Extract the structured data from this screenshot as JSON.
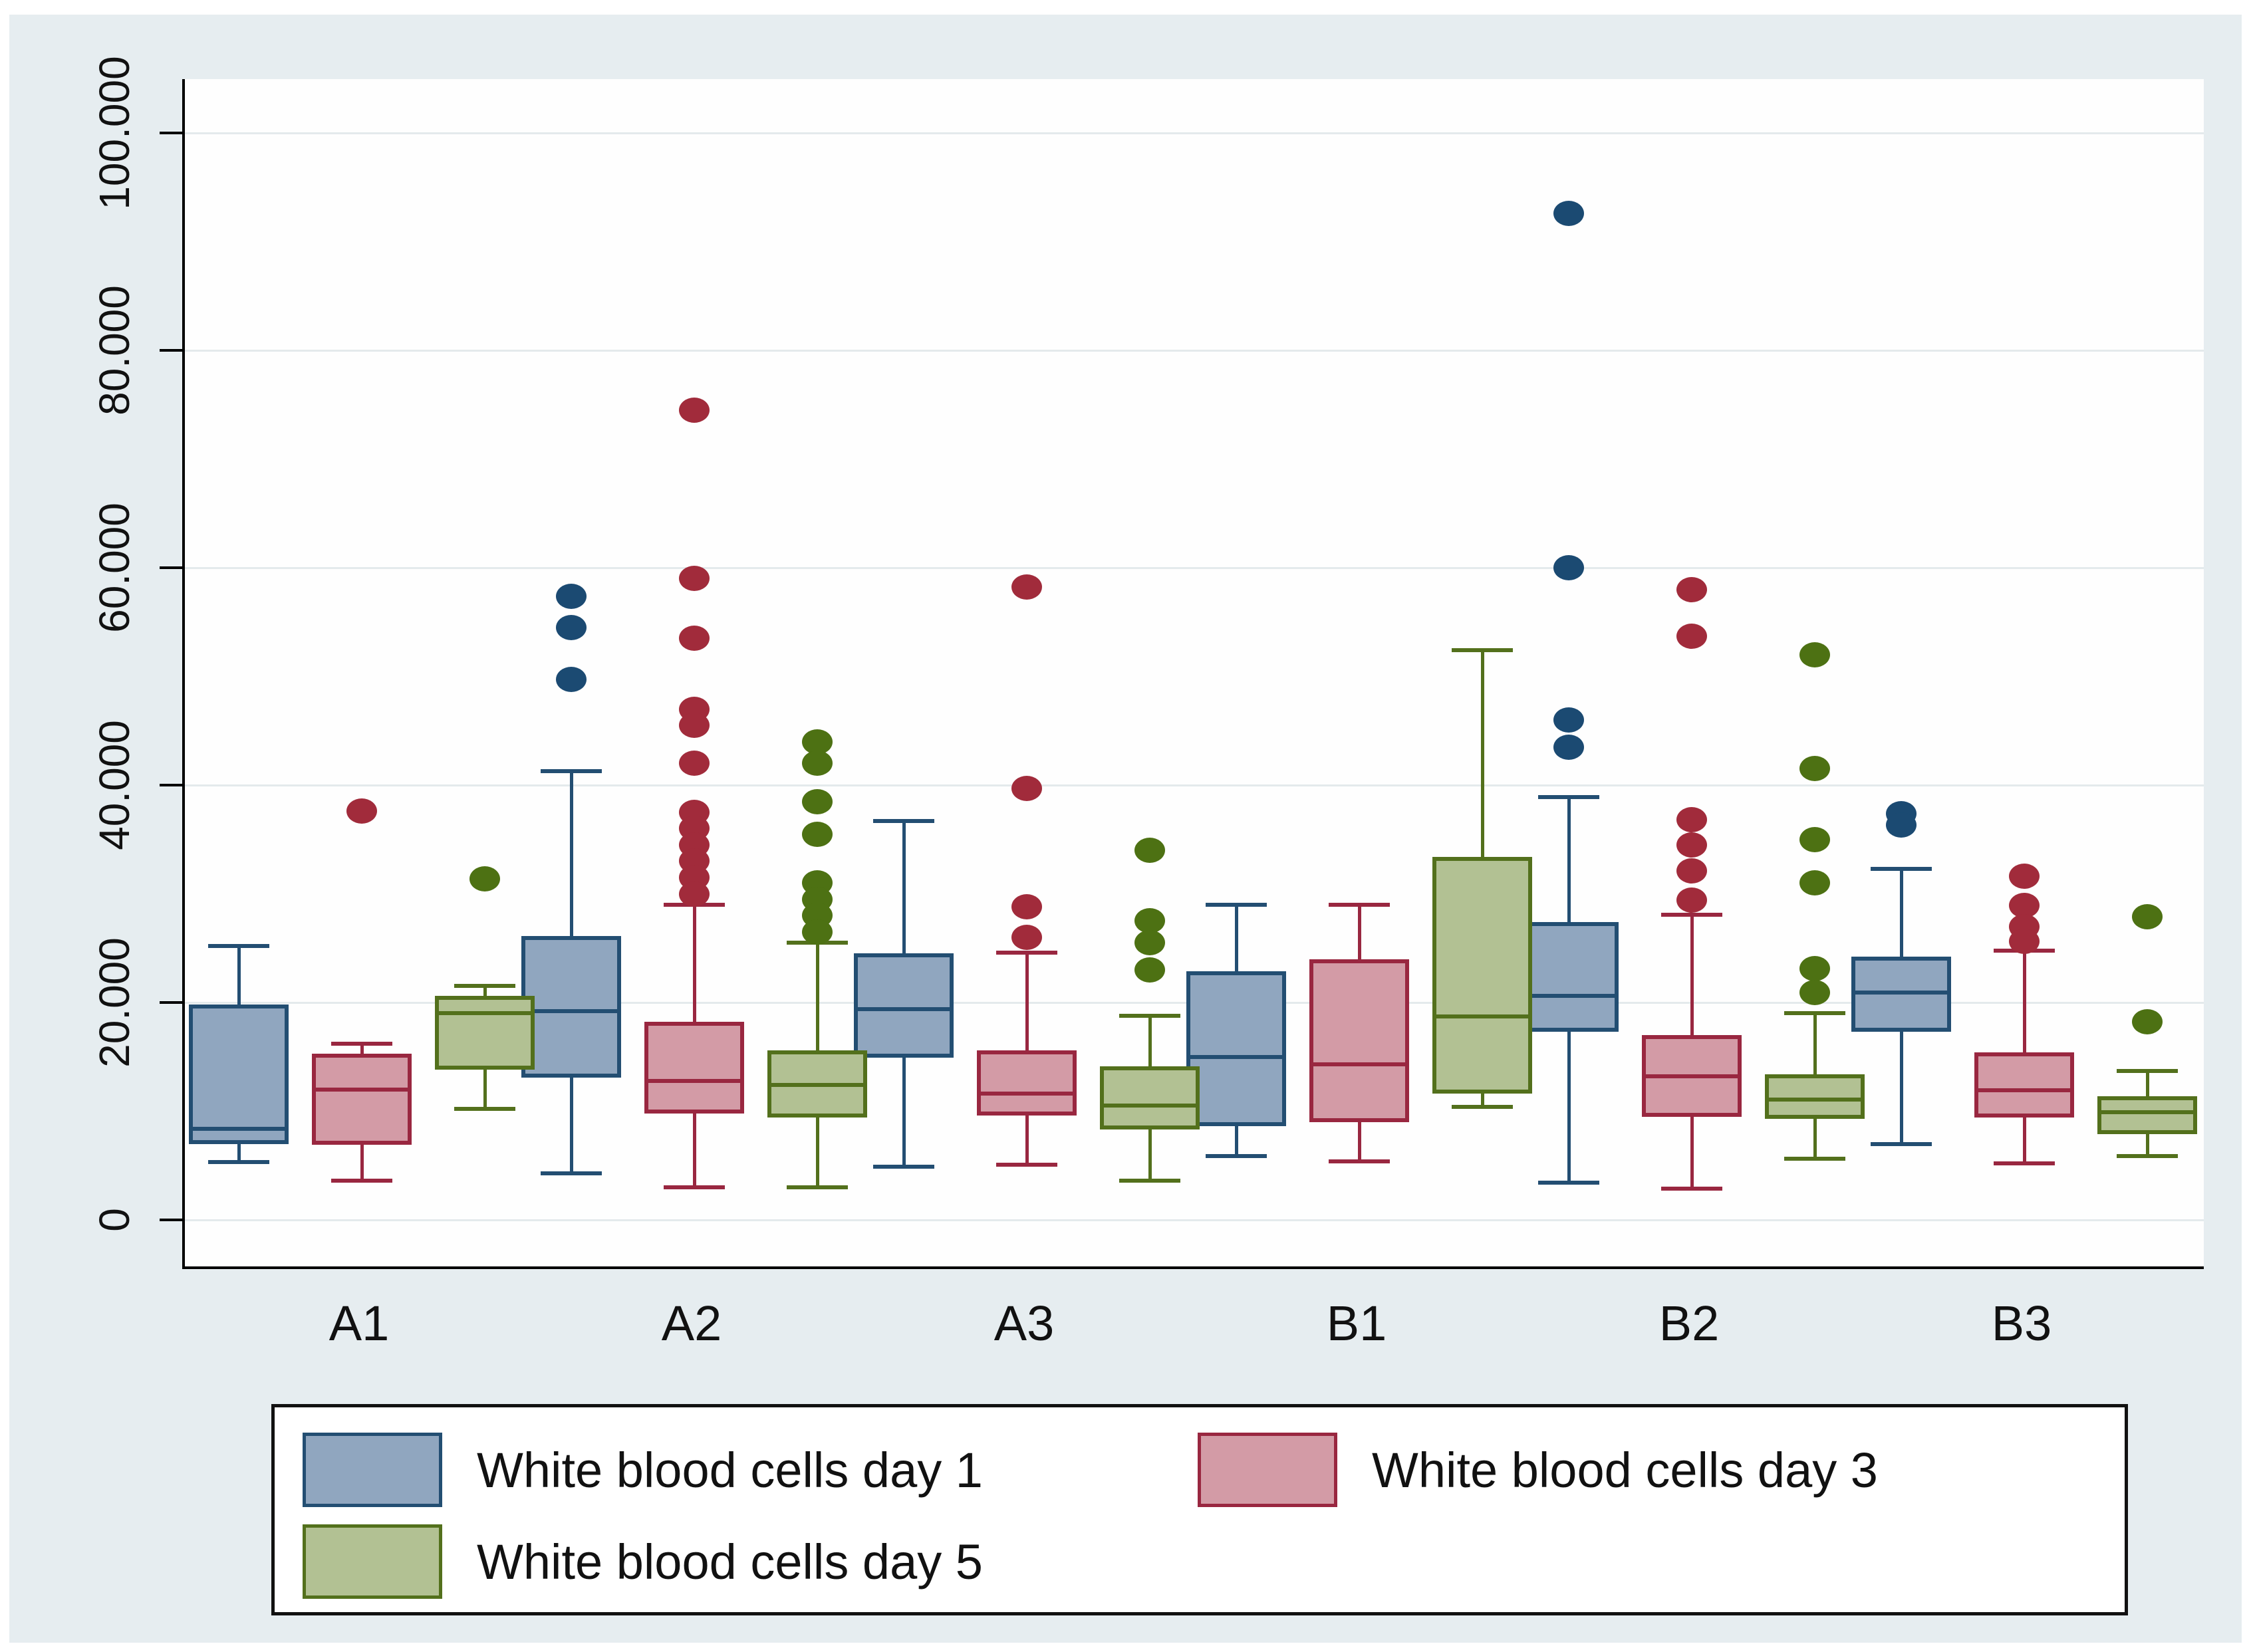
{
  "chart_data": {
    "type": "boxplot",
    "title": "",
    "xlabel": "",
    "ylabel": "",
    "grid": "horizontal",
    "ylim": [
      -4300,
      105000
    ],
    "y_ticks": [
      {
        "value": 0,
        "label": "0"
      },
      {
        "value": 20000,
        "label": "20.000"
      },
      {
        "value": 40000,
        "label": "40.000"
      },
      {
        "value": 60000,
        "label": "60.000"
      },
      {
        "value": 80000,
        "label": "80.000"
      },
      {
        "value": 100000,
        "label": "100.000"
      }
    ],
    "categories": [
      "A1",
      "A2",
      "A3",
      "B1",
      "B2",
      "B3"
    ],
    "legend_position": "bottom",
    "series": [
      {
        "name": "White blood cells day 1",
        "fill": "#90a6bf",
        "stroke": "#234e72",
        "dot": "#1b4a72",
        "boxes": [
          {
            "lo": 5300,
            "q1": 7000,
            "med": 8400,
            "q3": 19800,
            "hi": 25200,
            "outliers": []
          },
          {
            "lo": 4300,
            "q1": 13100,
            "med": 19200,
            "q3": 26100,
            "hi": 41300,
            "outliers": [
              57400,
              54500,
              49700
            ]
          },
          {
            "lo": 4900,
            "q1": 14900,
            "med": 19400,
            "q3": 24500,
            "hi": 36700,
            "outliers": []
          },
          {
            "lo": 5900,
            "q1": 8600,
            "med": 15000,
            "q3": 22900,
            "hi": 29000,
            "outliers": []
          },
          {
            "lo": 3400,
            "q1": 17300,
            "med": 20600,
            "q3": 27400,
            "hi": 38900,
            "outliers": [
              92600,
              60000,
              46000,
              43500
            ]
          },
          {
            "lo": 7000,
            "q1": 17300,
            "med": 20900,
            "q3": 24200,
            "hi": 32300,
            "outliers": [
              37400,
              36300
            ]
          }
        ]
      },
      {
        "name": "White blood cells day 3",
        "fill": "#d39ba6",
        "stroke": "#992740",
        "dot": "#a12b3b",
        "boxes": [
          {
            "lo": 3600,
            "q1": 6900,
            "med": 12000,
            "q3": 15300,
            "hi": 16200,
            "outliers": [
              37600
            ]
          },
          {
            "lo": 3000,
            "q1": 9800,
            "med": 12800,
            "q3": 18200,
            "hi": 29000,
            "outliers": [
              74500,
              59000,
              53500,
              47000,
              45500,
              42000,
              37500,
              36000,
              34500,
              33000,
              31500,
              30000
            ]
          },
          {
            "lo": 5100,
            "q1": 9600,
            "med": 11600,
            "q3": 15600,
            "hi": 24600,
            "outliers": [
              58200,
              39700,
              28800,
              26000
            ]
          },
          {
            "lo": 5400,
            "q1": 9000,
            "med": 14300,
            "q3": 24000,
            "hi": 29000,
            "outliers": []
          },
          {
            "lo": 2900,
            "q1": 9500,
            "med": 13200,
            "q3": 17000,
            "hi": 28100,
            "outliers": [
              58000,
              53700,
              36800,
              34500,
              32100,
              29400
            ]
          },
          {
            "lo": 5200,
            "q1": 9400,
            "med": 11900,
            "q3": 15400,
            "hi": 24800,
            "outliers": [
              31600,
              28900,
              27000,
              25600
            ]
          }
        ]
      },
      {
        "name": "White blood cells day 5",
        "fill": "#b2c193",
        "stroke": "#53701c",
        "dot": "#4d7113",
        "boxes": [
          {
            "lo": 10200,
            "q1": 13800,
            "med": 19000,
            "q3": 20600,
            "hi": 21500,
            "outliers": [
              31400
            ]
          },
          {
            "lo": 3000,
            "q1": 9400,
            "med": 12400,
            "q3": 15600,
            "hi": 25500,
            "outliers": [
              44000,
              42000,
              38500,
              35500,
              31000,
              29500,
              28000,
              26500
            ]
          },
          {
            "lo": 3600,
            "q1": 8300,
            "med": 10500,
            "q3": 14100,
            "hi": 18800,
            "outliers": [
              34000,
              27500,
              25500,
              23000
            ]
          },
          {
            "lo": 10400,
            "q1": 11600,
            "med": 18700,
            "q3": 33400,
            "hi": 52400,
            "outliers": []
          },
          {
            "lo": 5600,
            "q1": 9300,
            "med": 11100,
            "q3": 13400,
            "hi": 19000,
            "outliers": [
              52000,
              41500,
              35000,
              31000,
              23100,
              20900
            ]
          },
          {
            "lo": 5900,
            "q1": 7900,
            "med": 9900,
            "q3": 11400,
            "hi": 13700,
            "outliers": [
              27900,
              18200
            ]
          }
        ]
      }
    ],
    "colors": {
      "panel_background": "#e6edf0",
      "plot_background": "#fefefe",
      "gridline": "#e4eaec",
      "axis": "#000000",
      "text": "#111111",
      "legend_border": "#111111",
      "legend_background": "#ffffff"
    }
  }
}
